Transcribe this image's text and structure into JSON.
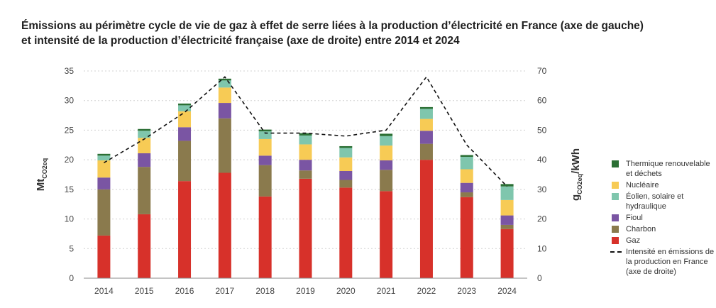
{
  "title_line1": "Émissions au périmètre cycle de vie de gaz à effet de serre liées à la production d’électricité en France (axe de gauche)",
  "title_line2": "et intensité de la production d’électricité française (axe de droite) entre 2014 et 2024",
  "chart_data": {
    "type": "bar",
    "stacked": true,
    "categories": [
      "2014",
      "2015",
      "2016",
      "2017",
      "2018",
      "2019",
      "2020",
      "2021",
      "2022",
      "2023",
      "2024"
    ],
    "ylabel_left": {
      "main": "Mt",
      "sub": "CO2eq"
    },
    "ylabel_right": {
      "main": "g",
      "sub": "CO2eq",
      "suffix": "/kWh"
    },
    "ylim_left": [
      0,
      35
    ],
    "ylim_right": [
      0,
      70
    ],
    "yticks_left": [
      0,
      5,
      10,
      15,
      20,
      25,
      30,
      35
    ],
    "yticks_right": [
      0,
      10,
      20,
      30,
      40,
      50,
      60,
      70
    ],
    "grid": true,
    "series": [
      {
        "name": "Gaz",
        "color": "#d7312a",
        "values": [
          7.2,
          10.8,
          16.4,
          17.8,
          13.8,
          16.8,
          15.3,
          14.7,
          20.0,
          13.7,
          8.3
        ]
      },
      {
        "name": "Charbon",
        "color": "#8a7a4d",
        "values": [
          7.8,
          8.0,
          6.8,
          9.2,
          5.3,
          1.4,
          1.3,
          3.6,
          2.7,
          0.8,
          0.7
        ]
      },
      {
        "name": "Fioul",
        "color": "#7a55a3",
        "values": [
          2.0,
          2.3,
          2.3,
          2.6,
          1.6,
          1.8,
          1.5,
          1.6,
          2.2,
          1.6,
          1.6
        ]
      },
      {
        "name": "Nucléaire",
        "color": "#f7cb55",
        "values": [
          2.9,
          2.6,
          2.7,
          2.6,
          2.8,
          2.6,
          2.3,
          2.5,
          2.0,
          2.3,
          2.6
        ]
      },
      {
        "name": "Éolien, solaire et hydraulique",
        "color": "#7fc6ad",
        "values": [
          0.8,
          1.2,
          1.0,
          1.2,
          1.3,
          1.5,
          1.6,
          1.6,
          1.7,
          2.1,
          2.3
        ]
      },
      {
        "name": "Thermique renouvelable et déchets",
        "color": "#2b6f34",
        "values": [
          0.3,
          0.3,
          0.3,
          0.3,
          0.3,
          0.4,
          0.3,
          0.4,
          0.3,
          0.3,
          0.4
        ]
      }
    ],
    "line_series": {
      "name": "Intensité en émissions de la production en France (axe de droite)",
      "axis": "right",
      "values": [
        39,
        47,
        56,
        68,
        49,
        49,
        48,
        50,
        68,
        45,
        31
      ]
    }
  },
  "legend": {
    "thermique": "Thermique renouvelable et déchets",
    "nucleaire": "Nucléaire",
    "eolien": "Éolien, solaire et hydraulique",
    "fioul": "Fioul",
    "charbon": "Charbon",
    "gaz": "Gaz",
    "intensite": "Intensité en émissions de la production en France (axe de droite)"
  }
}
